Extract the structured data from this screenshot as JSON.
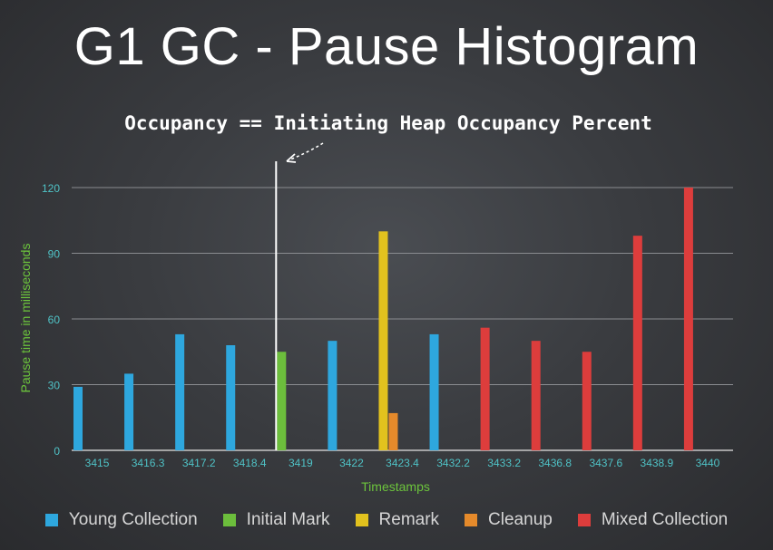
{
  "slide": {
    "title": "G1 GC - Pause Histogram",
    "annotation": "Occupancy == Initiating Heap Occupancy Percent"
  },
  "chart_data": {
    "type": "bar",
    "xlabel": "Timestamps",
    "ylabel": "Pause time in milliseconds",
    "ylim": [
      0,
      120
    ],
    "yticks": [
      0,
      30,
      60,
      90,
      120
    ],
    "grid": true,
    "legend_position": "bottom",
    "colors": {
      "Young Collection": "#2ea7de",
      "Initial Mark": "#6cbe3c",
      "Remark": "#e2c21e",
      "Cleanup": "#e58a2b",
      "Mixed Collection": "#dd3d3c"
    },
    "categories": [
      "3415",
      "3416.3",
      "3417.2",
      "3418.4",
      "3419",
      "3422",
      "3423.4",
      "3432.2",
      "3433.2",
      "3436.8",
      "3437.6",
      "3438.9",
      "3440"
    ],
    "series": [
      {
        "name": "Young Collection",
        "values": [
          29,
          35,
          53,
          48,
          null,
          50,
          null,
          53,
          null,
          null,
          null,
          null,
          null
        ]
      },
      {
        "name": "Initial Mark",
        "values": [
          null,
          null,
          null,
          null,
          45,
          null,
          null,
          null,
          null,
          null,
          null,
          null,
          null
        ]
      },
      {
        "name": "Remark",
        "values": [
          null,
          null,
          null,
          null,
          null,
          null,
          100,
          null,
          null,
          null,
          null,
          null,
          null
        ]
      },
      {
        "name": "Cleanup",
        "values": [
          null,
          null,
          null,
          null,
          null,
          null,
          17,
          null,
          null,
          null,
          null,
          null,
          null
        ]
      },
      {
        "name": "Mixed Collection",
        "values": [
          null,
          null,
          null,
          null,
          null,
          null,
          null,
          null,
          56,
          50,
          45,
          98,
          120
        ]
      }
    ],
    "marker_category": "3419"
  }
}
